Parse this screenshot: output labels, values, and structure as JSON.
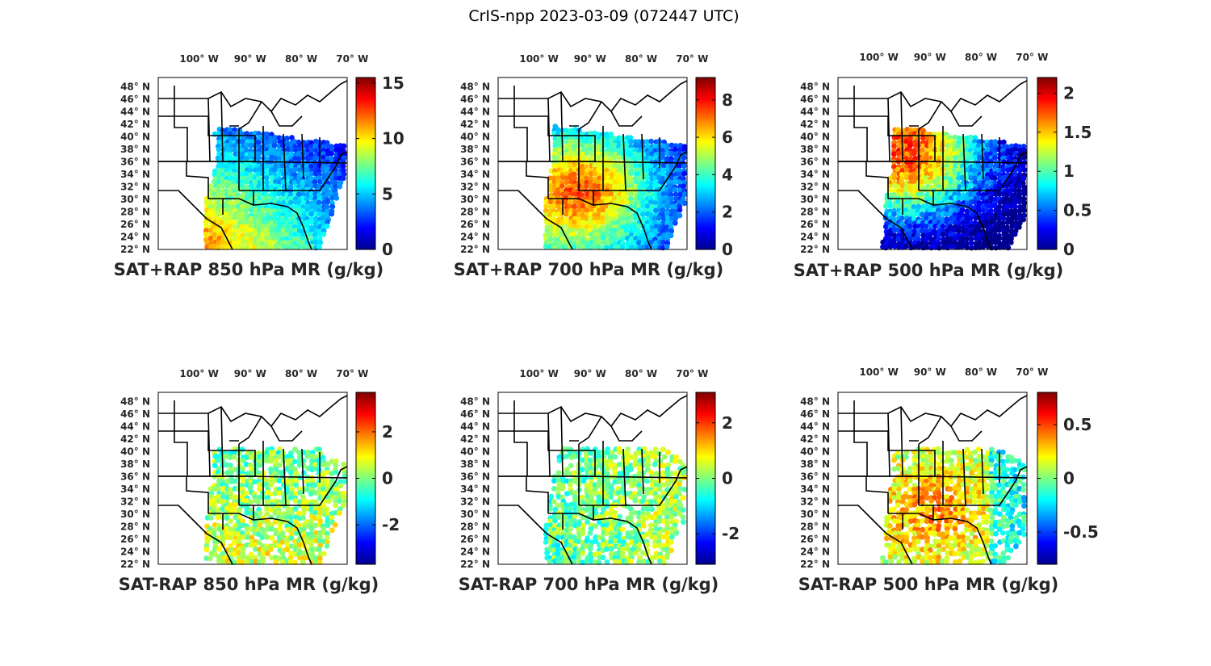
{
  "figure": {
    "suptitle": "CrIS-npp 2023-03-09 (072447 UTC)",
    "lon_labels": [
      "100° W",
      "90° W",
      "80° W",
      "70° W"
    ],
    "lat_labels": [
      "48° N",
      "46° N",
      "44° N",
      "42° N",
      "40° N",
      "38° N",
      "36° N",
      "34° N",
      "32° N",
      "30° N",
      "28° N",
      "26° N",
      "24° N",
      "22° N"
    ],
    "colormap": "jet",
    "colors": {
      "background": "#ffffff",
      "text": "#262626",
      "border": "#000000",
      "jet": [
        "#00008f",
        "#0000ff",
        "#007fff",
        "#00ffff",
        "#7fff7f",
        "#ffff00",
        "#ff7f00",
        "#ff0000",
        "#7f0000"
      ]
    }
  },
  "chart_data": [
    {
      "type": "heatmap",
      "title": "SAT+RAP 850 hPa MR (g/kg)",
      "colorbar": {
        "ticks": [
          "0",
          "5",
          "10",
          "15"
        ],
        "tick_values": [
          0,
          5,
          10,
          15
        ],
        "range": [
          0,
          15.5
        ]
      },
      "field": "mixing-ratio",
      "level_hPa": 850
    },
    {
      "type": "heatmap",
      "title": "SAT+RAP 700 hPa MR (g/kg)",
      "colorbar": {
        "ticks": [
          "0",
          "2",
          "4",
          "6",
          "8"
        ],
        "tick_values": [
          0,
          2,
          4,
          6,
          8
        ],
        "range": [
          0,
          9.2
        ]
      },
      "field": "mixing-ratio",
      "level_hPa": 700
    },
    {
      "type": "heatmap",
      "title": "SAT+RAP 500 hPa MR (g/kg)",
      "colorbar": {
        "ticks": [
          "0",
          "0.5",
          "1",
          "1.5",
          "2"
        ],
        "tick_values": [
          0,
          0.5,
          1,
          1.5,
          2
        ],
        "range": [
          0,
          2.2
        ]
      },
      "field": "mixing-ratio",
      "level_hPa": 500
    },
    {
      "type": "heatmap",
      "title": "SAT-RAP 850 hPa MR (g/kg)",
      "colorbar": {
        "ticks": [
          "-2",
          "0",
          "2"
        ],
        "tick_values": [
          -2,
          0,
          2
        ],
        "range": [
          -3.7,
          3.7
        ]
      },
      "field": "mixing-ratio-difference",
      "level_hPa": 850
    },
    {
      "type": "heatmap",
      "title": "SAT-RAP 700 hPa MR (g/kg)",
      "colorbar": {
        "ticks": [
          "-2",
          "0",
          "2"
        ],
        "tick_values": [
          -2,
          0,
          2
        ],
        "range": [
          -3.1,
          3.1
        ]
      },
      "field": "mixing-ratio-difference",
      "level_hPa": 700
    },
    {
      "type": "heatmap",
      "title": "SAT-RAP 500 hPa MR (g/kg)",
      "colorbar": {
        "ticks": [
          "-0.5",
          "0",
          "0.5"
        ],
        "tick_values": [
          -0.5,
          0,
          0.5
        ],
        "range": [
          -0.8,
          0.8
        ]
      },
      "field": "mixing-ratio-difference",
      "level_hPa": 500
    }
  ]
}
